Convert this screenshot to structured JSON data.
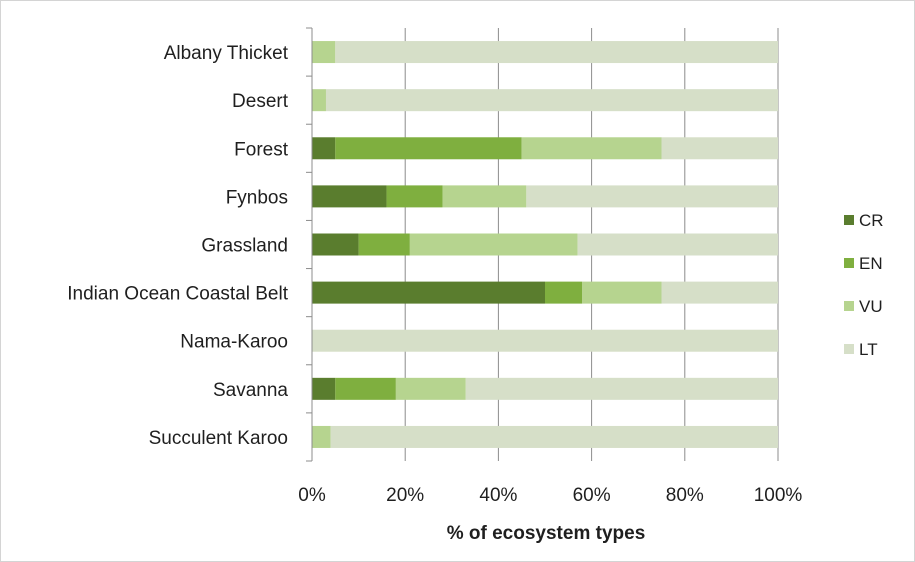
{
  "chart_data": {
    "type": "bar",
    "orientation": "horizontal",
    "stacked": true,
    "percent_stacked": true,
    "categories": [
      "Albany Thicket",
      "Desert",
      "Forest",
      "Fynbos",
      "Grassland",
      "Indian Ocean Coastal Belt",
      "Nama-Karoo",
      "Savanna",
      "Succulent Karoo"
    ],
    "series": [
      {
        "name": "CR",
        "color": "#5a7d2e",
        "values": [
          0,
          0,
          5,
          16,
          10,
          50,
          0,
          5,
          0
        ]
      },
      {
        "name": "EN",
        "color": "#7faf3f",
        "values": [
          0,
          0,
          40,
          12,
          11,
          8,
          0,
          13,
          0
        ]
      },
      {
        "name": "VU",
        "color": "#b6d48f",
        "values": [
          5,
          3,
          30,
          18,
          36,
          17,
          0,
          15,
          4
        ]
      },
      {
        "name": "LT",
        "color": "#d6dfc8",
        "values": [
          95,
          97,
          25,
          54,
          43,
          25,
          100,
          67,
          96
        ]
      }
    ],
    "x_ticks": [
      "0%",
      "20%",
      "40%",
      "60%",
      "80%",
      "100%"
    ],
    "xlim": [
      0,
      100
    ],
    "xlabel": "% of ecosystem types",
    "ylabel": "",
    "title": "",
    "grid": "vertical",
    "legend_position": "right"
  }
}
